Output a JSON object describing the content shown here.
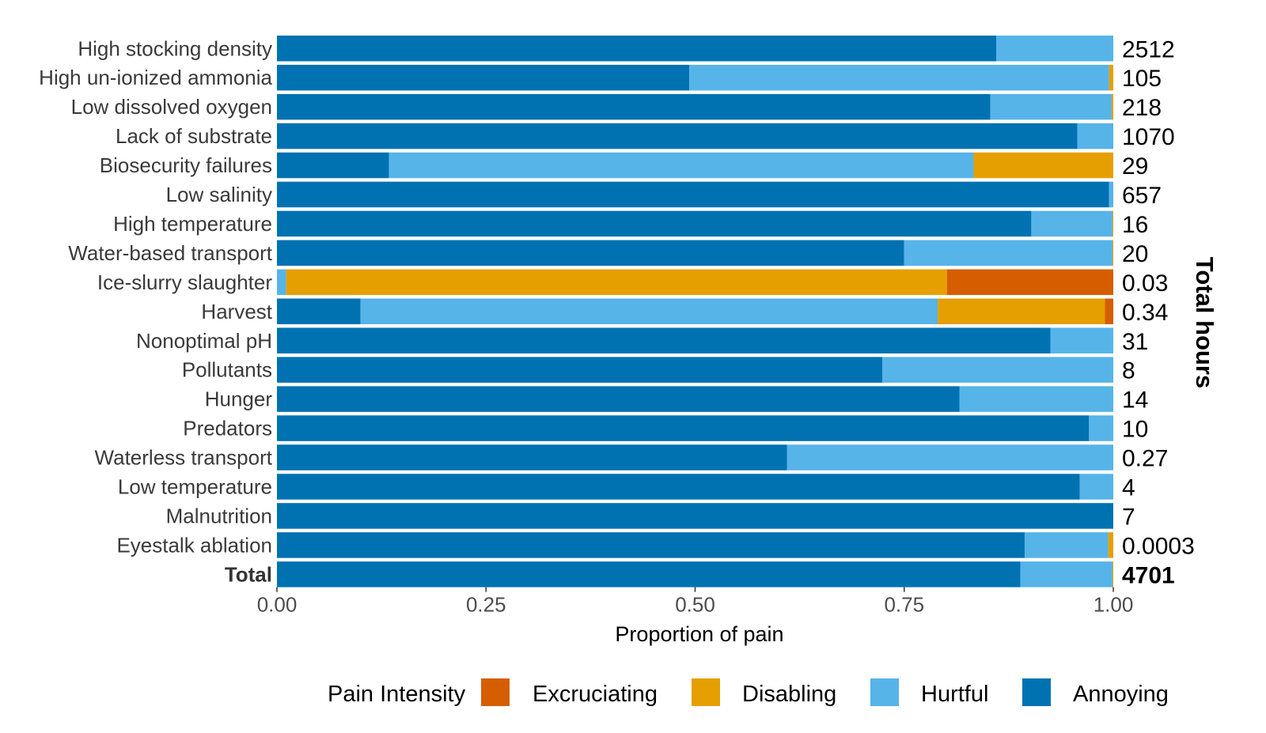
{
  "chart_data": {
    "type": "bar",
    "orientation": "horizontal",
    "stacked": "proportion",
    "title": "",
    "xlabel": "Proportion of pain",
    "right_axis_title": "Total hours",
    "xlim": [
      0,
      1
    ],
    "x_ticks": [
      "0.00",
      "0.25",
      "0.50",
      "0.75",
      "1.00"
    ],
    "legend": {
      "title": "Pain Intensity",
      "position": "bottom",
      "entries": [
        {
          "name": "Excruciating",
          "color": "#D55E00"
        },
        {
          "name": "Disabling",
          "color": "#E69F00"
        },
        {
          "name": "Hurtful",
          "color": "#56B4E9"
        },
        {
          "name": "Annoying",
          "color": "#0072B2"
        }
      ]
    },
    "stack_order": [
      "Annoying",
      "Hurtful",
      "Disabling",
      "Excruciating"
    ],
    "categories": [
      {
        "label": "High stocking density",
        "hours": "2512",
        "annoying": 0.86,
        "hurtful": 0.14,
        "disabling": 0.0,
        "excruciating": 0.0
      },
      {
        "label": "High un-ionized ammonia",
        "hours": "105",
        "annoying": 0.493,
        "hurtful": 0.502,
        "disabling": 0.005,
        "excruciating": 0.0
      },
      {
        "label": "Low dissolved oxygen",
        "hours": "218",
        "annoying": 0.853,
        "hurtful": 0.145,
        "disabling": 0.002,
        "excruciating": 0.0
      },
      {
        "label": "Lack of substrate",
        "hours": "1070",
        "annoying": 0.957,
        "hurtful": 0.043,
        "disabling": 0.0,
        "excruciating": 0.0
      },
      {
        "label": "Biosecurity failures",
        "hours": "29",
        "annoying": 0.134,
        "hurtful": 0.699,
        "disabling": 0.167,
        "excruciating": 0.0
      },
      {
        "label": "Low salinity",
        "hours": "657",
        "annoying": 0.995,
        "hurtful": 0.005,
        "disabling": 0.0,
        "excruciating": 0.0
      },
      {
        "label": "High temperature",
        "hours": "16",
        "annoying": 0.902,
        "hurtful": 0.097,
        "disabling": 0.001,
        "excruciating": 0.0
      },
      {
        "label": "Water-based transport",
        "hours": "20",
        "annoying": 0.75,
        "hurtful": 0.249,
        "disabling": 0.001,
        "excruciating": 0.0
      },
      {
        "label": "Ice-slurry slaughter",
        "hours": "0.03",
        "annoying": 0.0,
        "hurtful": 0.011,
        "disabling": 0.79,
        "excruciating": 0.199
      },
      {
        "label": "Harvest",
        "hours": "0.34",
        "annoying": 0.1,
        "hurtful": 0.69,
        "disabling": 0.2,
        "excruciating": 0.01
      },
      {
        "label": "Nonoptimal pH",
        "hours": "31",
        "annoying": 0.925,
        "hurtful": 0.075,
        "disabling": 0.0,
        "excruciating": 0.0
      },
      {
        "label": "Pollutants",
        "hours": "8",
        "annoying": 0.724,
        "hurtful": 0.276,
        "disabling": 0.0,
        "excruciating": 0.0
      },
      {
        "label": "Hunger",
        "hours": "14",
        "annoying": 0.816,
        "hurtful": 0.184,
        "disabling": 0.0,
        "excruciating": 0.0
      },
      {
        "label": "Predators",
        "hours": "10",
        "annoying": 0.971,
        "hurtful": 0.029,
        "disabling": 0.0,
        "excruciating": 0.0
      },
      {
        "label": "Waterless transport",
        "hours": "0.27",
        "annoying": 0.61,
        "hurtful": 0.39,
        "disabling": 0.0,
        "excruciating": 0.0
      },
      {
        "label": "Low temperature",
        "hours": "4",
        "annoying": 0.96,
        "hurtful": 0.04,
        "disabling": 0.0,
        "excruciating": 0.0
      },
      {
        "label": "Malnutrition",
        "hours": "7",
        "annoying": 1.0,
        "hurtful": 0.0,
        "disabling": 0.0,
        "excruciating": 0.0
      },
      {
        "label": "Eyestalk ablation",
        "hours": "0.0003",
        "annoying": 0.894,
        "hurtful": 0.1,
        "disabling": 0.006,
        "excruciating": 0.0
      },
      {
        "label": "Total",
        "hours": "4701",
        "annoying": 0.889,
        "hurtful": 0.11,
        "disabling": 0.001,
        "excruciating": 0.0,
        "bold": true
      }
    ]
  }
}
